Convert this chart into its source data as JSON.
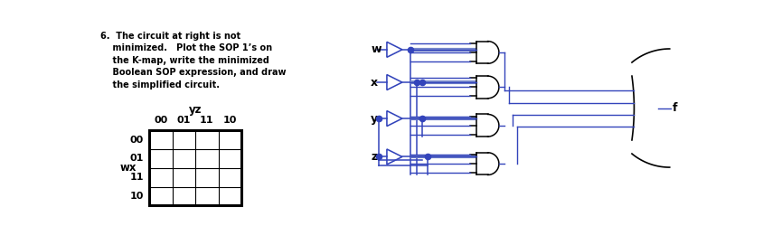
{
  "bg": "#ffffff",
  "blue": "#3344bb",
  "black": "#000000",
  "text_lines": [
    "6.  The circuit at right is not",
    "    minimized.   Plot the SOP 1’s on",
    "    the K-map, write the minimized",
    "    Boolean SOP expression, and draw",
    "    the simplified circuit."
  ],
  "kmap_col_labels": [
    "00",
    "01",
    "11",
    "10"
  ],
  "kmap_row_labels": [
    "00",
    "01",
    "11",
    "10"
  ],
  "inputs": [
    "w",
    "x",
    "y",
    "z"
  ],
  "output": "f"
}
